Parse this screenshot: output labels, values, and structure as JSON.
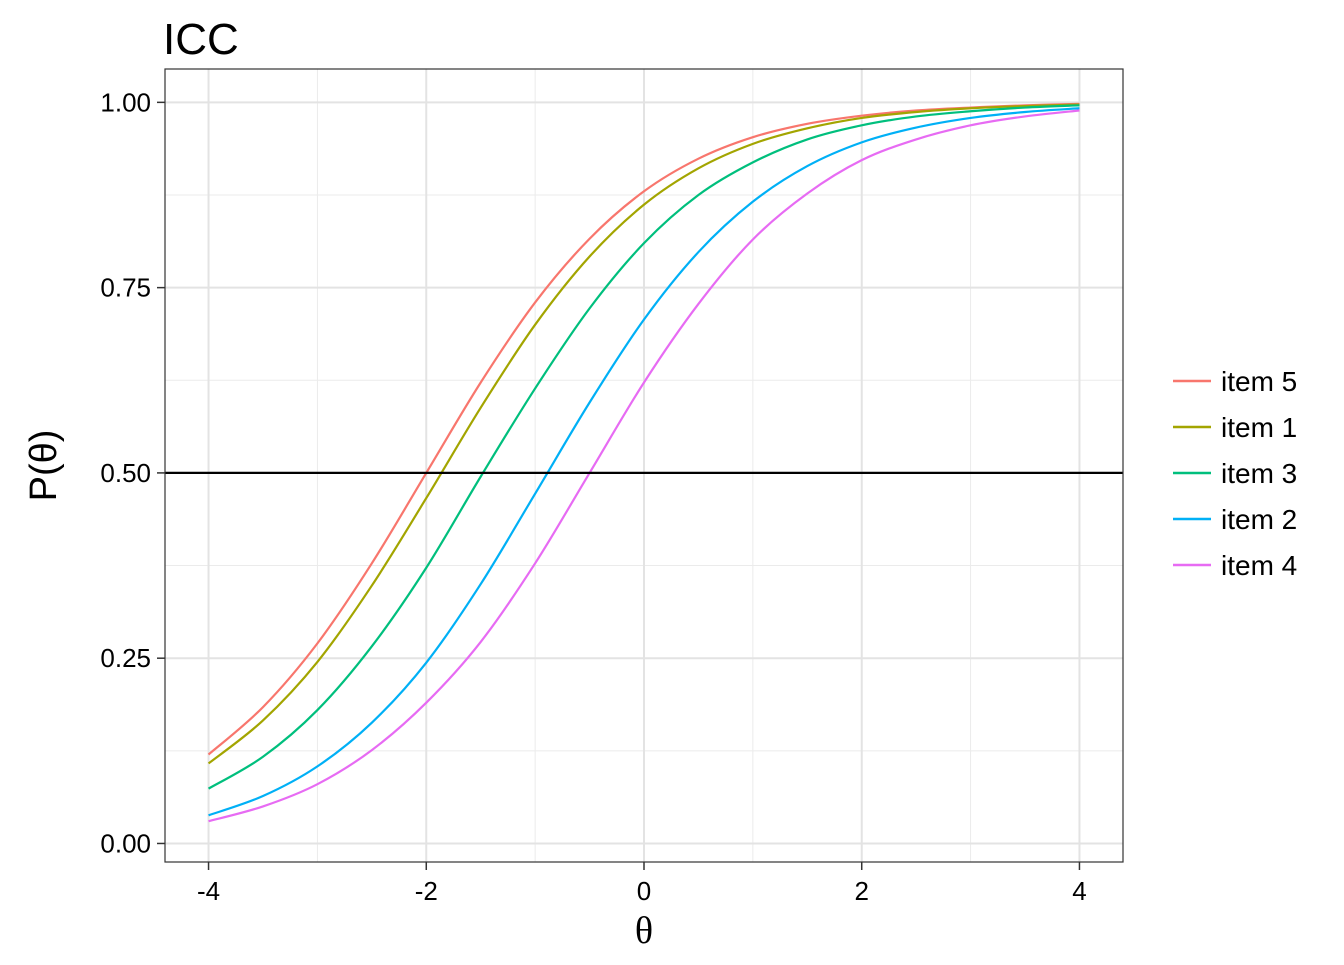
{
  "chart_data": {
    "type": "line",
    "title": "ICC",
    "xlabel": "θ",
    "ylabel": "P(θ)",
    "xlim": [
      -4.4,
      4.4
    ],
    "ylim": [
      -0.025,
      1.045
    ],
    "x_ticks": [
      -4,
      -2,
      0,
      2,
      4
    ],
    "x_tick_labels": [
      "-4",
      "-2",
      "0",
      "2",
      "4"
    ],
    "y_ticks": [
      0,
      0.25,
      0.5,
      0.75,
      1
    ],
    "y_tick_labels": [
      "0.00",
      "0.25",
      "0.50",
      "0.75",
      "1.00"
    ],
    "x_minor_ticks": [
      -3,
      -1,
      1,
      3
    ],
    "y_minor_ticks": [
      0.125,
      0.375,
      0.625,
      0.875
    ],
    "grid": true,
    "reference_line": {
      "y": 0.5,
      "color": "#000000"
    },
    "legend_position": "right",
    "x": [
      -4,
      -3.5,
      -3,
      -2.5,
      -2,
      -1.5,
      -1,
      -0.5,
      0,
      0.5,
      1,
      1.5,
      2,
      2.5,
      3,
      3.5,
      4
    ],
    "series": [
      {
        "name": "item 5",
        "color": "#F8766D",
        "values": [
          0.12,
          0.184,
          0.27,
          0.378,
          0.5,
          0.622,
          0.73,
          0.816,
          0.88,
          0.924,
          0.953,
          0.971,
          0.982,
          0.989,
          0.993,
          0.996,
          0.998
        ]
      },
      {
        "name": "item 1",
        "color": "#A3A500",
        "values": [
          0.108,
          0.166,
          0.245,
          0.348,
          0.466,
          0.588,
          0.7,
          0.792,
          0.862,
          0.911,
          0.944,
          0.965,
          0.979,
          0.987,
          0.992,
          0.995,
          0.997
        ]
      },
      {
        "name": "item 3",
        "color": "#00BF7D",
        "values": [
          0.074,
          0.117,
          0.18,
          0.266,
          0.372,
          0.495,
          0.614,
          0.722,
          0.81,
          0.875,
          0.919,
          0.95,
          0.969,
          0.981,
          0.988,
          0.993,
          0.996
        ]
      },
      {
        "name": "item 2",
        "color": "#00B0F6",
        "values": [
          0.038,
          0.064,
          0.104,
          0.163,
          0.244,
          0.35,
          0.472,
          0.595,
          0.707,
          0.798,
          0.866,
          0.914,
          0.946,
          0.966,
          0.979,
          0.987,
          0.992
        ]
      },
      {
        "name": "item 4",
        "color": "#E76BF3",
        "values": [
          0.03,
          0.05,
          0.08,
          0.126,
          0.19,
          0.272,
          0.378,
          0.5,
          0.622,
          0.728,
          0.815,
          0.877,
          0.922,
          0.95,
          0.969,
          0.981,
          0.989
        ]
      }
    ]
  }
}
